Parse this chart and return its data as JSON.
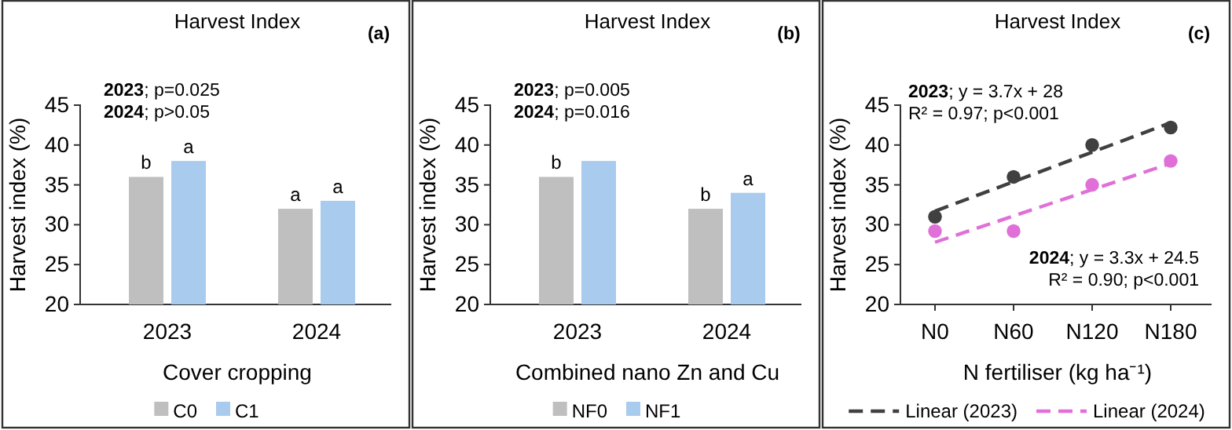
{
  "chart_data": [
    {
      "type": "bar",
      "title": "Harvest Index",
      "xlabel": "Cover cropping",
      "ylabel": "Harvest index (%)",
      "categories": [
        "2023",
        "2024"
      ],
      "series": [
        {
          "name": "C0",
          "color": "#bfbfbf",
          "values": [
            36,
            32
          ],
          "value_labels": [
            "b",
            "a"
          ]
        },
        {
          "name": "C1",
          "color": "#a9cbed",
          "values": [
            38,
            33
          ],
          "value_labels": [
            "a",
            "a"
          ]
        }
      ],
      "ylim": [
        20,
        45
      ],
      "yticks": [
        20,
        25,
        30,
        35,
        40,
        45
      ],
      "grid": false,
      "legend": "bottom",
      "annotations": [
        "(a)",
        "2023; p=0.025",
        "2024; p>0.05"
      ]
    },
    {
      "type": "bar",
      "title": "Harvest Index",
      "xlabel": "Combined nano Zn and Cu",
      "ylabel": "Harvest index (%)",
      "categories": [
        "2023",
        "2024"
      ],
      "series": [
        {
          "name": "NF0",
          "color": "#bfbfbf",
          "values": [
            36,
            32
          ],
          "value_labels": [
            "b",
            "b"
          ]
        },
        {
          "name": "NF1",
          "color": "#a9cbed",
          "values": [
            38,
            34
          ],
          "value_labels": [
            null,
            "a"
          ]
        }
      ],
      "ylim": [
        20,
        45
      ],
      "yticks": [
        20,
        25,
        30,
        35,
        40,
        45
      ],
      "grid": false,
      "legend": "bottom",
      "annotations": [
        "(b)",
        "2023; p=0.005",
        "2024; p=0.016"
      ]
    },
    {
      "type": "scatter",
      "title": "Harvest Index",
      "xlabel": "N fertiliser (kg ha⁻¹)",
      "ylabel": "Harvest index (%)",
      "categories": [
        "N0",
        "N60",
        "N120",
        "N180"
      ],
      "series": [
        {
          "type": "scatter",
          "color": "#404040",
          "values": [
            31,
            36,
            40,
            42.2
          ],
          "marker": "circle"
        },
        {
          "type": "scatter",
          "color": "#e070d8",
          "values": [
            29.2,
            29.2,
            35,
            38
          ],
          "marker": "circle"
        },
        {
          "type": "line",
          "name": "Linear (2023)",
          "color": "#404040",
          "values": [
            31.7,
            35.4,
            39.1,
            42.8
          ],
          "line_style": "dashed"
        },
        {
          "type": "line",
          "name": "Linear (2024)",
          "color": "#e070d8",
          "values": [
            27.8,
            31.1,
            34.4,
            37.7
          ],
          "line_style": "dashed"
        }
      ],
      "ylim": [
        20,
        45
      ],
      "yticks": [
        20,
        25,
        30,
        35,
        40,
        45
      ],
      "grid": false,
      "legend": "bottom",
      "annotations": [
        "(c)",
        "2023; y = 3.7x + 28",
        "R² = 0.97; p<0.001",
        "2024; y = 3.3x + 24.5",
        "R² = 0.90; p<0.001"
      ]
    }
  ]
}
